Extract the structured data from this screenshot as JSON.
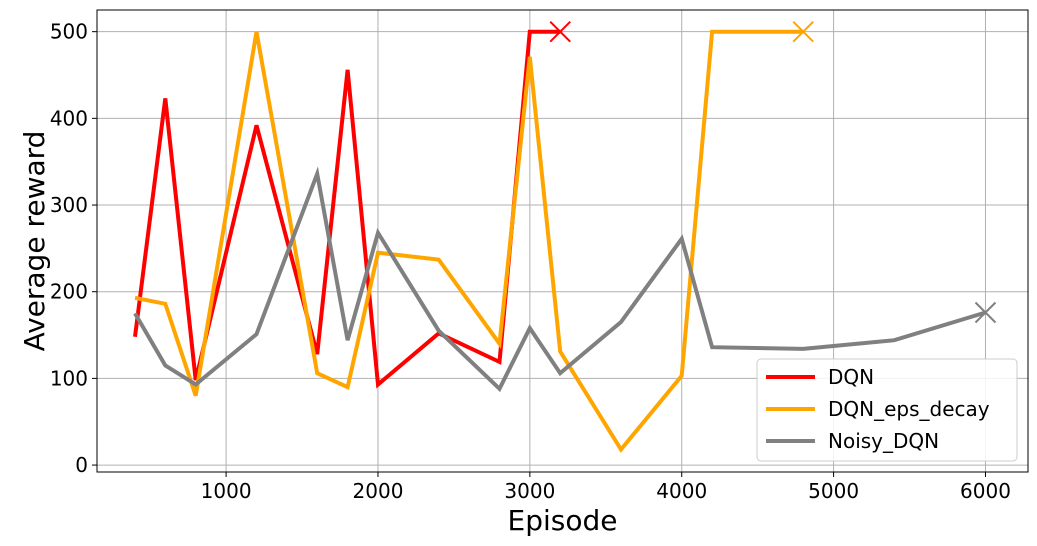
{
  "chart_data": {
    "type": "line",
    "title": "",
    "xlabel": "Episode",
    "ylabel": "Average reward",
    "xlim": [
      150,
      6280
    ],
    "ylim": [
      -8,
      525
    ],
    "xticks": [
      1000,
      2000,
      3000,
      4000,
      5000,
      6000
    ],
    "xtick_labels": [
      "1000",
      "2000",
      "3000",
      "4000",
      "5000",
      "6000"
    ],
    "yticks": [
      0,
      100,
      200,
      300,
      400,
      500
    ],
    "ytick_labels": [
      "0",
      "100",
      "200",
      "300",
      "400",
      "500"
    ],
    "grid": true,
    "legend_position": "lower-right",
    "series": [
      {
        "name": "DQN",
        "color": "#ff0000",
        "x": [
          400,
          600,
          800,
          1200,
          1600,
          1800,
          2000,
          2400,
          2800,
          3000,
          3200
        ],
        "y": [
          148,
          423,
          98,
          392,
          128,
          456,
          93,
          152,
          119,
          500,
          500
        ],
        "end_marker": "x"
      },
      {
        "name": "DQN_eps_decay",
        "color": "#ffa500",
        "x": [
          400,
          600,
          800,
          1200,
          1600,
          1800,
          2000,
          2400,
          2800,
          3000,
          3200,
          3600,
          4000,
          4200,
          4800
        ],
        "y": [
          193,
          186,
          80,
          500,
          106,
          90,
          245,
          237,
          140,
          471,
          131,
          18,
          103,
          500,
          500
        ],
        "end_marker": "x"
      },
      {
        "name": "Noisy_DQN",
        "color": "#808080",
        "x": [
          400,
          600,
          800,
          1200,
          1600,
          1800,
          2000,
          2400,
          2800,
          3000,
          3200,
          3600,
          4000,
          4200,
          4800,
          5400,
          6000
        ],
        "y": [
          175,
          115,
          93,
          151,
          336,
          144,
          268,
          155,
          88,
          158,
          106,
          165,
          261,
          136,
          134,
          144,
          176
        ],
        "end_marker": "x"
      }
    ]
  }
}
